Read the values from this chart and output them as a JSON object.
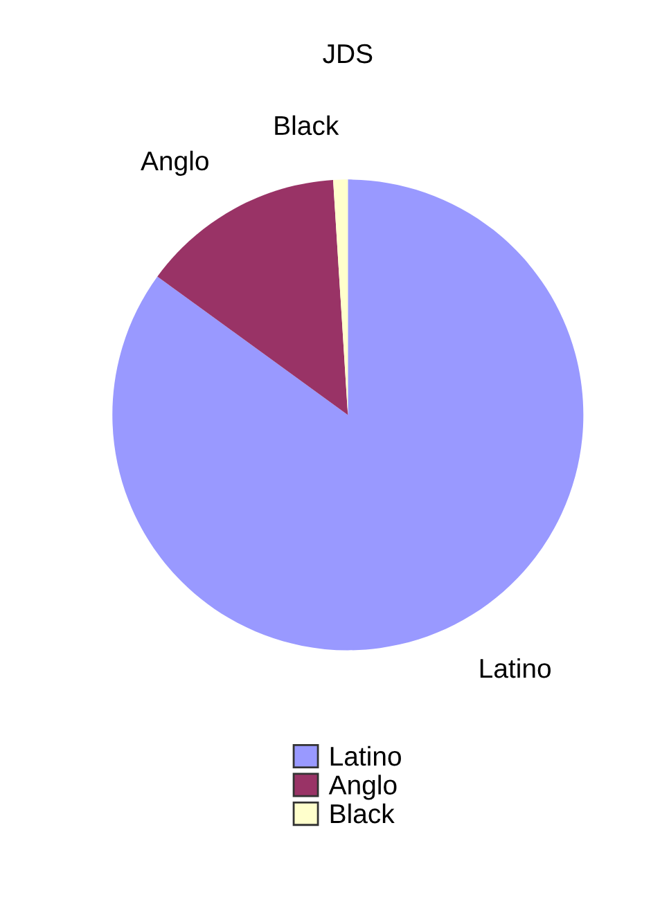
{
  "chart_data": {
    "type": "pie",
    "title": "JDS",
    "categories": [
      "Latino",
      "Anglo",
      "Black"
    ],
    "values": [
      85,
      14,
      1
    ],
    "colors": [
      "#9999ff",
      "#993366",
      "#ffffcc"
    ],
    "legend": "bottom"
  }
}
